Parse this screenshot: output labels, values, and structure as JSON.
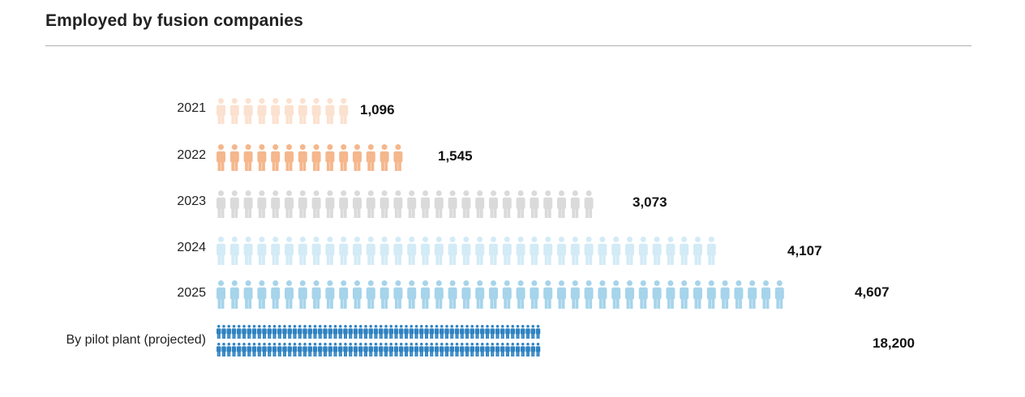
{
  "title": "Employed by fusion companies",
  "chart_data": {
    "type": "pictogram-bar",
    "title": "Employed by fusion companies",
    "categories": [
      "2021",
      "2022",
      "2023",
      "2024",
      "2025",
      "By pilot plant (projected)"
    ],
    "values": [
      1096,
      1545,
      3073,
      4107,
      4607,
      18200
    ],
    "value_labels": [
      "1,096",
      "1,545",
      "3,073",
      "4,107",
      "4,607",
      "18,200"
    ],
    "colors": [
      "#fbe1cf",
      "#f5b78c",
      "#dadada",
      "#d3ebf6",
      "#a6d4ea",
      "#2f82c1"
    ]
  }
}
